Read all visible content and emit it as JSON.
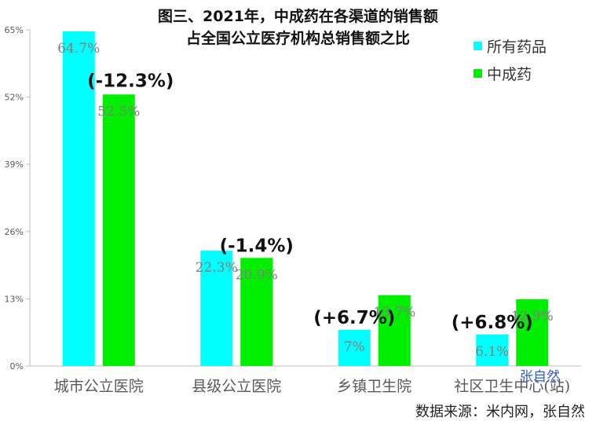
{
  "title_line1": "图三、2021年，中成药在各渠道的销售额",
  "title_line2": "占全国公立医疗机构总销售额之比",
  "source": "数据来源：米内网，张自然",
  "watermark": "张自然",
  "colors": {
    "series1": "#00ffff",
    "series2": "#00ee00"
  },
  "chart_data": {
    "type": "bar",
    "title": "图三、2021年，中成药在各渠道的销售额 占全国公立医疗机构总销售额之比",
    "categories": [
      "城市公立医院",
      "县级公立医院",
      "乡镇卫生院",
      "社区卫生中心(站)"
    ],
    "series": [
      {
        "name": "所有药品",
        "values": [
          64.7,
          22.3,
          7,
          6.1
        ],
        "labels": [
          "64.7%",
          "22.3%",
          "7%",
          "6.1%"
        ]
      },
      {
        "name": "中成药",
        "values": [
          52.5,
          20.9,
          13.7,
          12.9
        ],
        "labels": [
          "52.5%",
          "20.9%",
          "13.7%",
          "12.9%"
        ]
      }
    ],
    "growth_labels": [
      "(-12.3%)",
      "(-1.4%)",
      "(+6.7%)",
      "(+6.8%)"
    ],
    "yticks": [
      "0%",
      "13%",
      "26%",
      "39%",
      "52%",
      "65%"
    ],
    "ylim": [
      0,
      65
    ],
    "grid": false,
    "legend_position": "top-right"
  }
}
